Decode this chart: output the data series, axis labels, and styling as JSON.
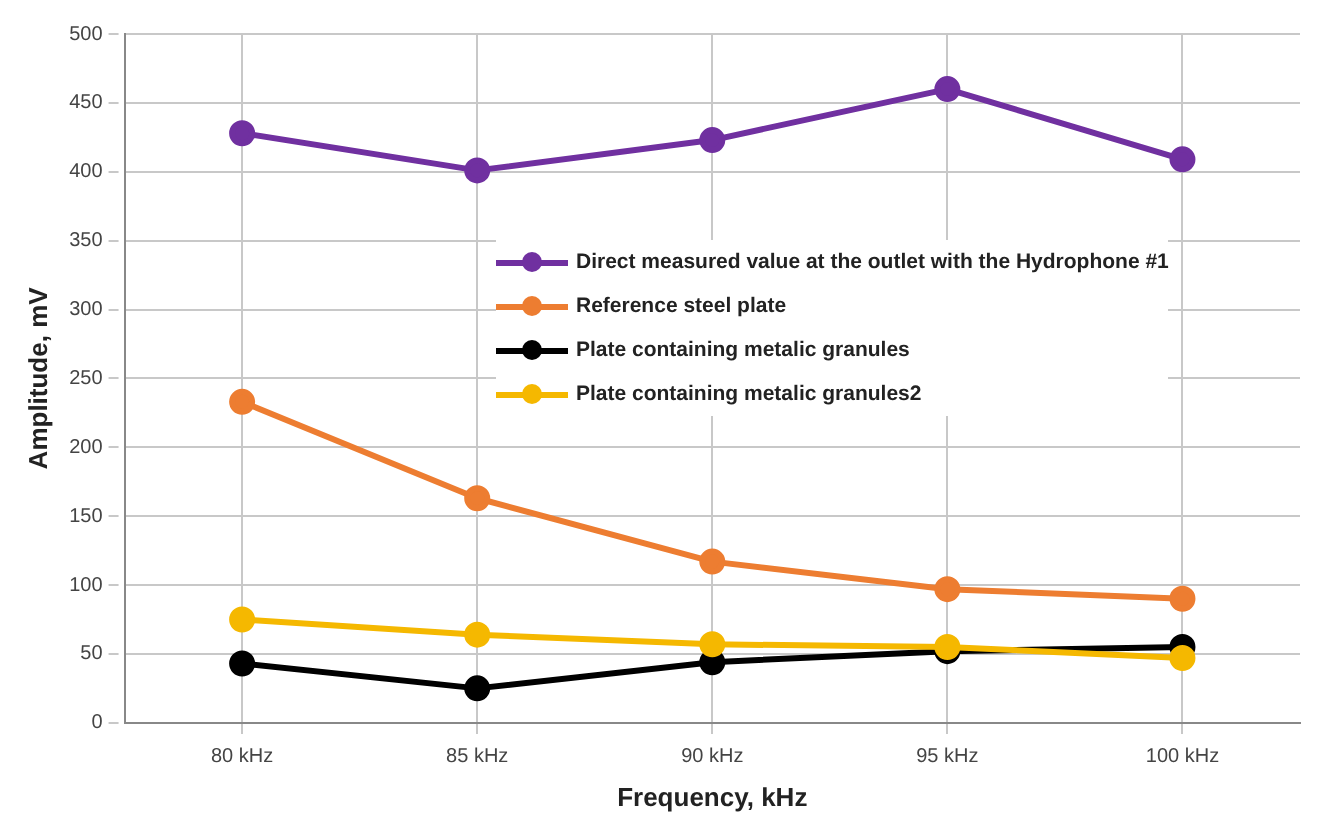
{
  "chart_data": {
    "type": "line",
    "xlabel": "Frequency, kHz",
    "ylabel": "Amplitude, mV",
    "categories": [
      "80 kHz",
      "85 kHz",
      "90 kHz",
      "95 kHz",
      "100 kHz"
    ],
    "series": [
      {
        "name": "Direct measured value at the outlet with the Hydrophone #1",
        "color": "#7030a0",
        "values": [
          428,
          401,
          423,
          460,
          409
        ]
      },
      {
        "name": "Reference steel plate",
        "color": "#ed7d31",
        "values": [
          233,
          163,
          117,
          97,
          90
        ]
      },
      {
        "name": "Plate containing metalic granules",
        "color": "#000000",
        "values": [
          43,
          25,
          44,
          52,
          55
        ]
      },
      {
        "name": "Plate containing metalic granules2",
        "color": "#f5b800",
        "values": [
          75,
          64,
          57,
          55,
          47
        ]
      }
    ],
    "ylim": [
      0,
      500
    ],
    "yticks": [
      0,
      50,
      100,
      150,
      200,
      250,
      300,
      350,
      400,
      450,
      500
    ],
    "grid": true,
    "legend": "center",
    "marker": "circle",
    "line_style": "solid"
  }
}
